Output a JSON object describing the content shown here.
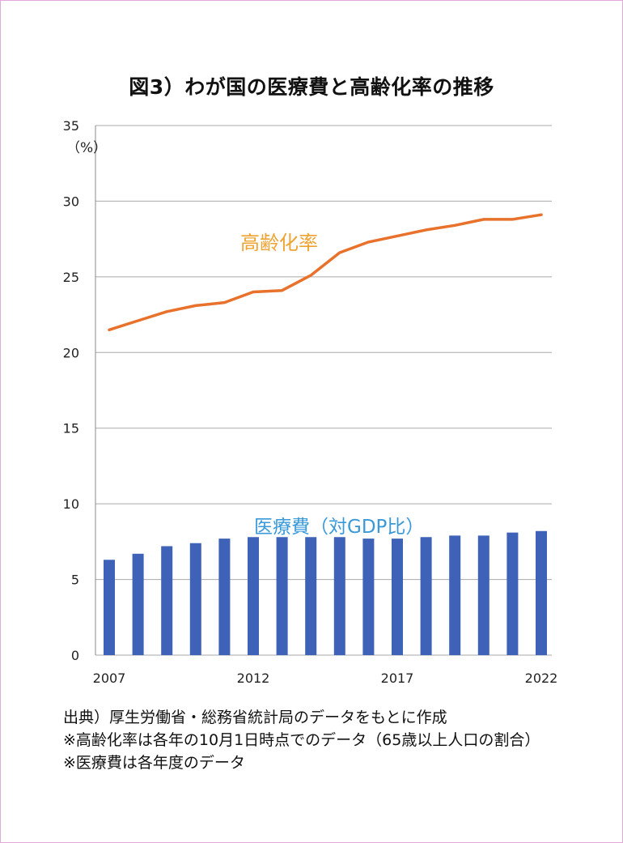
{
  "colors": {
    "frame": "#e4a8d8",
    "line": "#e8712b",
    "line_label": "#eea332",
    "bar": "#3d62b8",
    "bar_label": "#3a9ad9",
    "grid": "#aaaaaa"
  },
  "chart_data": {
    "type": "bar+line",
    "title": "図3）わが国の医療費と高齢化率の推移",
    "yunit": "（%）",
    "ylim": [
      0,
      35
    ],
    "yticks": [
      0,
      5,
      10,
      15,
      20,
      25,
      30,
      35
    ],
    "x": [
      2007,
      2008,
      2009,
      2010,
      2011,
      2012,
      2013,
      2014,
      2015,
      2016,
      2017,
      2018,
      2019,
      2020,
      2021,
      2022
    ],
    "xticks": [
      2007,
      2012,
      2017,
      2022
    ],
    "series": [
      {
        "name": "高齢化率",
        "kind": "line",
        "values": [
          21.5,
          22.1,
          22.7,
          23.1,
          23.3,
          24.0,
          24.1,
          25.1,
          26.6,
          27.3,
          27.7,
          28.1,
          28.4,
          28.8,
          28.8,
          29.1
        ]
      },
      {
        "name": "医療費（対GDP比）",
        "kind": "bar",
        "values": [
          6.3,
          6.7,
          7.2,
          7.4,
          7.7,
          7.8,
          7.8,
          7.8,
          7.8,
          7.7,
          7.7,
          7.8,
          7.9,
          7.9,
          8.1,
          8.2
        ]
      }
    ]
  },
  "source_lines": [
    "出典）厚生労働省・総務省統計局のデータをもとに作成",
    "※高齢化率は各年の10月1日時点でのデータ（65歳以上人口の割合）",
    "※医療費は各年度のデータ"
  ]
}
